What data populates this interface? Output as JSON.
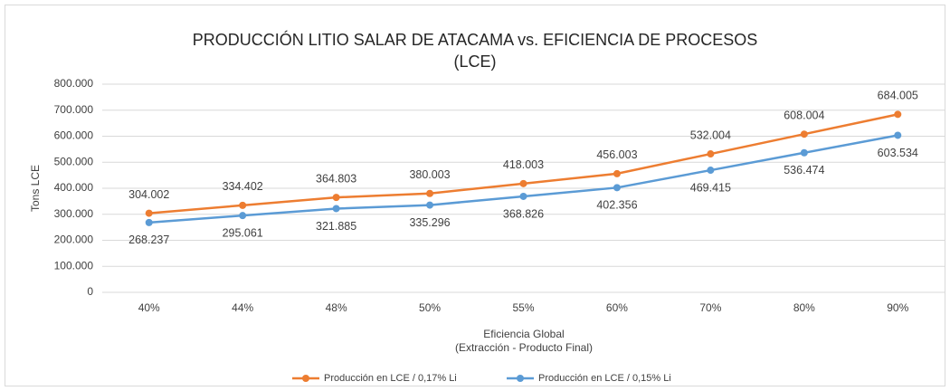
{
  "chart_data": {
    "type": "line",
    "title": [
      "PRODUCCIÓN LITIO SALAR DE ATACAMA vs. EFICIENCIA DE PROCESOS",
      "(LCE)"
    ],
    "y_label": "Tons LCE",
    "x_label": [
      "Eficiencia Global",
      "(Extracción - Producto Final)"
    ],
    "categories": [
      "40%",
      "44%",
      "48%",
      "50%",
      "55%",
      "60%",
      "70%",
      "80%",
      "90%"
    ],
    "series": [
      {
        "name": "Producción en LCE / 0,17% Li",
        "color": "#ed7d31",
        "values": [
          304002,
          334402,
          364803,
          380003,
          418003,
          456003,
          532004,
          608004,
          684005
        ],
        "value_labels": [
          "304.002",
          "334.402",
          "364.803",
          "380.003",
          "418.003",
          "456.003",
          "532.004",
          "608.004",
          "684.005"
        ]
      },
      {
        "name": "Producción en LCE / 0,15% Li",
        "color": "#5b9bd5",
        "values": [
          268237,
          295061,
          321885,
          335296,
          368826,
          402356,
          469415,
          536474,
          603534
        ],
        "value_labels": [
          "268.237",
          "295.061",
          "321.885",
          "335.296",
          "368.826",
          "402.356",
          "469.415",
          "536.474",
          "603.534"
        ]
      }
    ],
    "ylim": [
      0,
      800000
    ],
    "yticks": [
      0,
      {
        "value": 100000,
        "label": "100.000"
      },
      {
        "value": 200000,
        "label": "200.000"
      },
      {
        "value": 300000,
        "label": "300.000"
      },
      {
        "value": 400000,
        "label": "400.000"
      },
      {
        "value": 500000,
        "label": "500.000"
      },
      {
        "value": 600000,
        "label": "600.000"
      },
      {
        "value": 700000,
        "label": "700.000"
      },
      {
        "value": 800000,
        "label": "800.000"
      }
    ],
    "grid": true,
    "legend": "bottom"
  }
}
